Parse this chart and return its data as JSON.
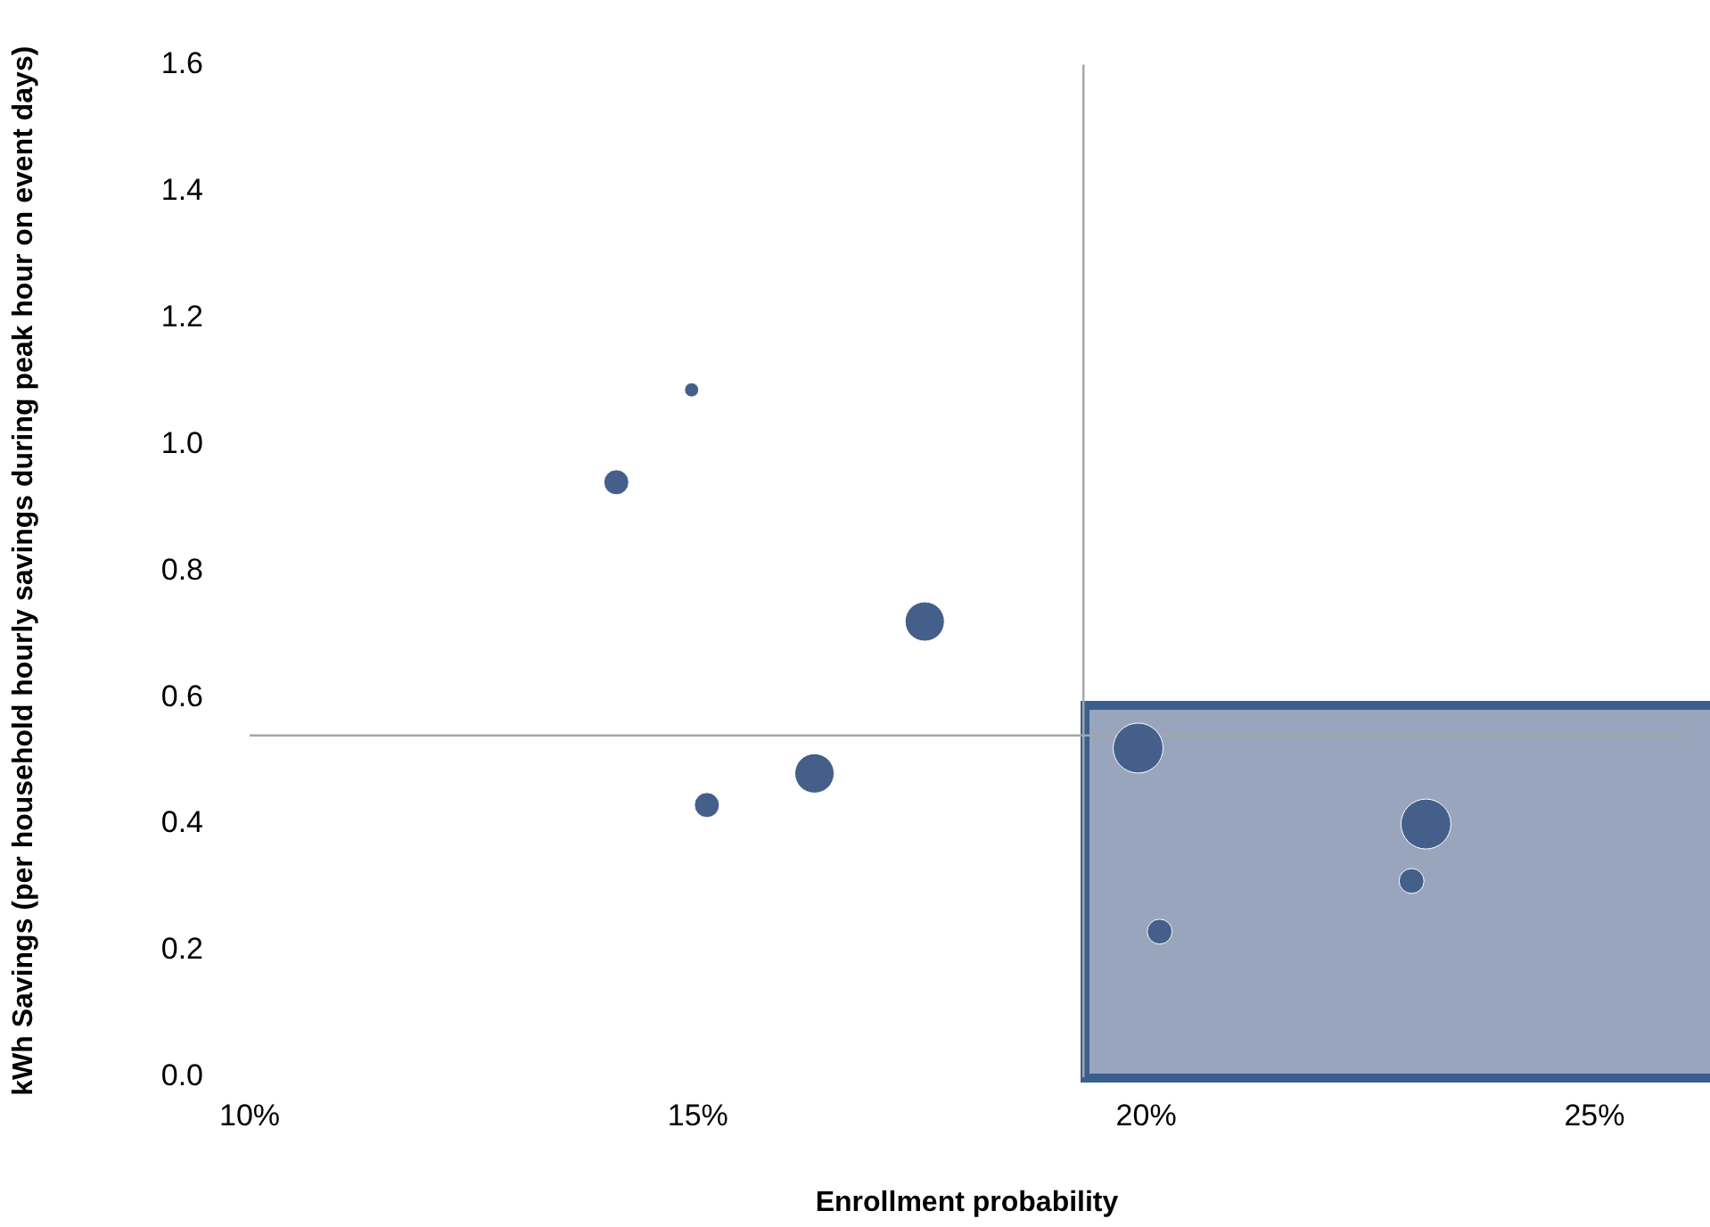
{
  "chart_data": {
    "type": "bubble",
    "xlabel": "Enrollment probability",
    "ylabel": "kWh Savings (per household hourly savings during peak hour on event days)",
    "x": [
      14.09,
      14.93,
      17.53,
      15.1,
      16.3,
      19.91,
      20.15,
      22.96,
      23.12
    ],
    "values": [
      0.94,
      1.086,
      0.72,
      0.43,
      0.48,
      0.52,
      0.23,
      0.31,
      0.4
    ],
    "sizes": [
      0.25,
      0.08,
      0.62,
      0.25,
      0.62,
      1,
      0.25,
      0.25,
      1
    ],
    "color": "#44608a",
    "xlim": [
      10,
      26
    ],
    "xticks": [
      {
        "value": 10,
        "label": "10%"
      },
      {
        "value": 15,
        "label": "15%"
      },
      {
        "value": 20,
        "label": "20%"
      },
      {
        "value": 25,
        "label": "25%"
      }
    ],
    "ylim": [
      0,
      1.6
    ],
    "yticks": [
      {
        "value": 0,
        "label": "0.0"
      },
      {
        "value": 0.2,
        "label": "0.2"
      },
      {
        "value": 0.4,
        "label": "0.4"
      },
      {
        "value": 0.6,
        "label": "0.6"
      },
      {
        "value": 0.8,
        "label": "0.8"
      },
      {
        "value": 1,
        "label": "1.0"
      },
      {
        "value": 1.2,
        "label": "1.2"
      },
      {
        "value": 1.4,
        "label": "1.4"
      },
      {
        "value": 1.6,
        "label": "1.6"
      }
    ],
    "ref_lines": [
      {
        "axis": "x",
        "value": 19.3,
        "color": "#a6a6a6"
      },
      {
        "axis": "y",
        "value": 0.54,
        "color": "#a6a6a6"
      }
    ],
    "grid": false,
    "legend": false
  }
}
